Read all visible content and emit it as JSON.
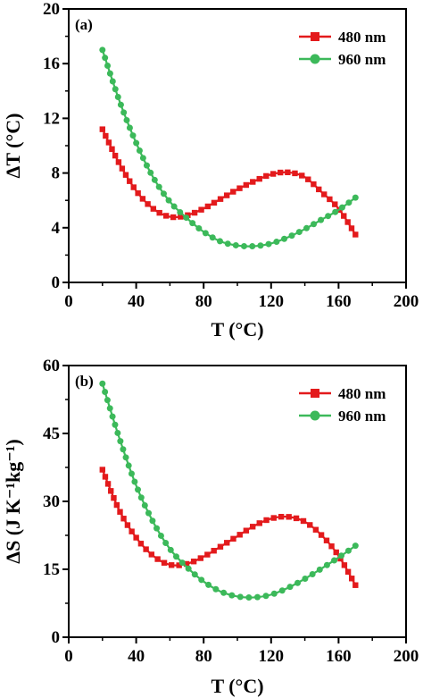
{
  "chart_data": [
    {
      "type": "line",
      "panel_label": "(a)",
      "xlabel": "T (°C)",
      "ylabel": "ΔT (°C)",
      "xlim": [
        0,
        200
      ],
      "ylim": [
        0,
        20
      ],
      "xticks": [
        0,
        40,
        80,
        120,
        160,
        200
      ],
      "yticks": [
        0,
        4,
        8,
        12,
        16,
        20
      ],
      "legend_position": "top-right",
      "series": [
        {
          "name": "480 nm",
          "color": "#e31a1c",
          "marker": "square",
          "x": [
            20,
            30,
            40,
            50,
            60,
            70,
            80,
            90,
            100,
            110,
            120,
            130,
            140,
            150,
            160,
            170
          ],
          "y": [
            11.2,
            8.7,
            6.7,
            5.4,
            4.8,
            4.9,
            5.4,
            6.1,
            6.8,
            7.4,
            7.9,
            8.05,
            7.7,
            6.6,
            5.4,
            3.5
          ]
        },
        {
          "name": "960 nm",
          "color": "#3cb95a",
          "marker": "circle",
          "x": [
            20,
            30,
            40,
            50,
            60,
            70,
            80,
            90,
            100,
            110,
            120,
            130,
            140,
            150,
            160,
            170
          ],
          "y": [
            17.0,
            13.3,
            10.2,
            7.7,
            5.9,
            4.7,
            3.7,
            3.0,
            2.7,
            2.65,
            2.85,
            3.3,
            3.9,
            4.6,
            5.3,
            6.2
          ]
        }
      ]
    },
    {
      "type": "line",
      "panel_label": "(b)",
      "xlabel": "T (°C)",
      "ylabel": "ΔS (J K⁻¹kg⁻¹)",
      "xlim": [
        0,
        200
      ],
      "ylim": [
        0,
        60
      ],
      "xticks": [
        0,
        40,
        80,
        120,
        160,
        200
      ],
      "yticks": [
        0,
        15,
        30,
        45,
        60
      ],
      "legend_position": "top-right",
      "series": [
        {
          "name": "480 nm",
          "color": "#e31a1c",
          "marker": "square",
          "x": [
            20,
            30,
            40,
            50,
            60,
            70,
            80,
            90,
            100,
            110,
            120,
            130,
            140,
            150,
            160,
            170
          ],
          "y": [
            37.0,
            28.0,
            22.0,
            18.0,
            16.0,
            16.2,
            17.8,
            20.0,
            22.3,
            24.6,
            26.2,
            26.6,
            25.5,
            22.5,
            18.0,
            11.5
          ]
        },
        {
          "name": "960 nm",
          "color": "#3cb95a",
          "marker": "circle",
          "x": [
            20,
            30,
            40,
            50,
            60,
            70,
            80,
            90,
            100,
            110,
            120,
            130,
            140,
            150,
            160,
            170
          ],
          "y": [
            56.0,
            44.0,
            33.5,
            25.5,
            19.5,
            15.5,
            12.3,
            10.1,
            9.0,
            8.8,
            9.4,
            10.9,
            12.9,
            15.2,
            17.6,
            20.2
          ]
        }
      ]
    }
  ]
}
